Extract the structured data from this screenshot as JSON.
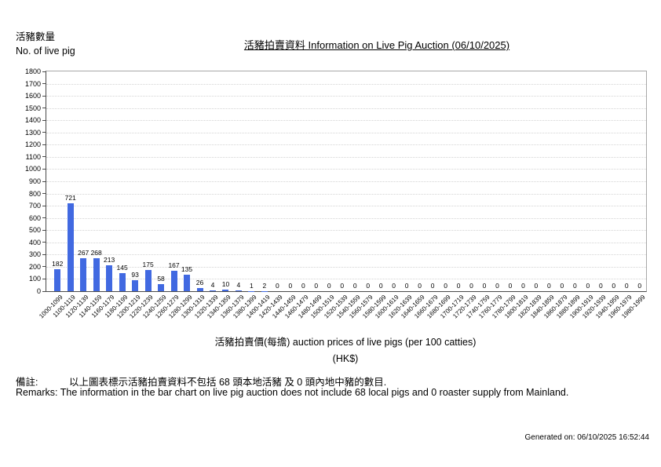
{
  "header": {
    "y_axis_title_zh": "活豬數量",
    "y_axis_title_en": "No. of live pig",
    "title": "活豬拍賣資料 Information on Live Pig Auction (06/10/2025)"
  },
  "footer": {
    "x_axis_title": "活豬拍賣價(每擔) auction prices of live pigs (per 100 catties)",
    "x_axis_unit": "(HK$)",
    "remarks_zh_label": "備註:",
    "remarks_zh": "以上圖表標示活豬拍賣資料不包括 68 頭本地活豬 及 0 頭內地中豬的數目.",
    "remarks_en": "Remarks: The information in the bar chart on live pig auction does not include 68 local pigs and 0 roaster supply from Mainland.",
    "generated_on": "Generated on: 06/10/2025 16:52:44"
  },
  "chart_data": {
    "type": "bar",
    "title": "活豬拍賣資料 Information on Live Pig Auction (06/10/2025)",
    "xlabel": "活豬拍賣價(每擔) auction prices of live pigs (per 100 catties) (HK$)",
    "ylabel": "活豬數量 No. of live pig",
    "ylim": [
      0,
      1800
    ],
    "ytick_step": 100,
    "grid": true,
    "legend": "none",
    "bar_color": "#4169E1",
    "value_labels": true,
    "categories": [
      "1000-1099",
      "1100-1119",
      "1120-1139",
      "1140-1159",
      "1160-1179",
      "1180-1199",
      "1200-1219",
      "1220-1239",
      "1240-1259",
      "1260-1279",
      "1280-1299",
      "1300-1319",
      "1320-1339",
      "1340-1359",
      "1360-1379",
      "1380-1399",
      "1400-1419",
      "1420-1439",
      "1440-1459",
      "1460-1479",
      "1480-1499",
      "1500-1519",
      "1520-1539",
      "1540-1559",
      "1560-1579",
      "1580-1599",
      "1600-1619",
      "1620-1639",
      "1640-1659",
      "1660-1679",
      "1680-1699",
      "1700-1719",
      "1720-1739",
      "1740-1759",
      "1760-1779",
      "1780-1799",
      "1800-1819",
      "1820-1839",
      "1840-1859",
      "1860-1879",
      "1880-1899",
      "1900-1919",
      "1920-1939",
      "1940-1959",
      "1960-1979",
      "1980-1999"
    ],
    "values": [
      182,
      721,
      267,
      268,
      213,
      145,
      93,
      175,
      58,
      167,
      135,
      26,
      4,
      10,
      4,
      1,
      2,
      0,
      0,
      0,
      0,
      0,
      0,
      0,
      0,
      0,
      0,
      0,
      0,
      0,
      0,
      0,
      0,
      0,
      0,
      0,
      0,
      0,
      0,
      0,
      0,
      0,
      0,
      0,
      0,
      0
    ]
  }
}
